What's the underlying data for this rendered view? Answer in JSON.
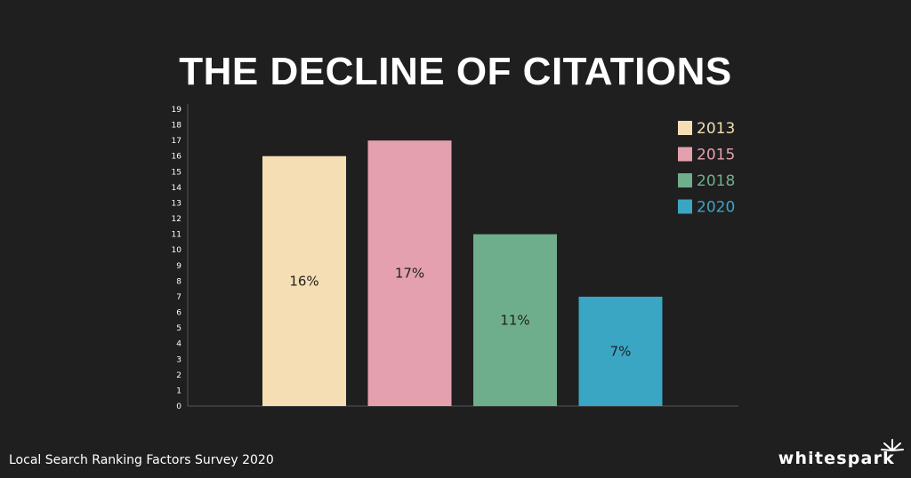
{
  "title": "THE DECLINE OF CITATIONS",
  "footer": {
    "caption": "Local Search Ranking Factors Survey 2020",
    "brand": "whitespark",
    "brand_mark": "sparkle-icon"
  },
  "chart_data": {
    "type": "bar",
    "title": "THE DECLINE OF CITATIONS",
    "categories": [
      "2013",
      "2015",
      "2018",
      "2020"
    ],
    "values": [
      16,
      17,
      11,
      7
    ],
    "data_labels": [
      "16%",
      "17%",
      "11%",
      "7%"
    ],
    "colors": [
      "#f5deb3",
      "#e4a0ad",
      "#6fae8c",
      "#3aa6c4"
    ],
    "ylim": [
      0,
      19
    ],
    "yticks": [
      "0",
      "1",
      "2",
      "3",
      "4",
      "5",
      "6",
      "7",
      "8",
      "9",
      "10",
      "11",
      "12",
      "13",
      "14",
      "15",
      "16",
      "17",
      "18",
      "19"
    ],
    "legend": [
      "2013",
      "2015",
      "2018",
      "2020"
    ],
    "legend_placement": "top-right",
    "grid": false
  }
}
